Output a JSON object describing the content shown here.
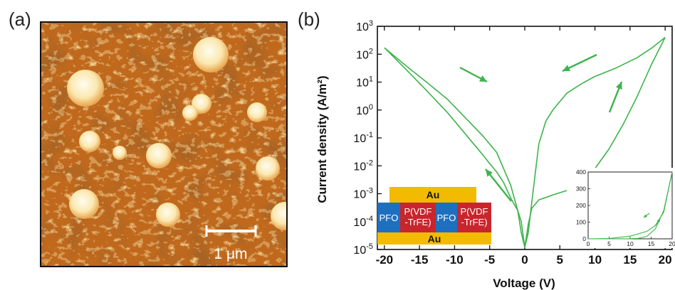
{
  "panel_a": {
    "label": "(a)",
    "scale_bar_text": "1 μm"
  },
  "panel_b": {
    "label": "(b)"
  },
  "device_schematic": {
    "top_electrode": "Au",
    "bottom_electrode": "Au",
    "segments": [
      "PFO",
      "P(VDF\n-TrFE)",
      "PFO",
      "P(VDF\n-TrFE)"
    ],
    "colors": {
      "gold": "#f2bb00",
      "pfo": "#1f6fc0",
      "pvdf": "#c8262c"
    }
  },
  "chart_data": [
    {
      "type": "line",
      "xlabel": "Voltage (V)",
      "ylabel": "Current density (A/m²)",
      "xlim": [
        -21,
        21
      ],
      "ylim": [
        1e-05,
        1000
      ],
      "yscale": "log",
      "xticks": [
        "-20",
        "-15",
        "-10",
        "-5",
        "0",
        "5",
        "10",
        "15",
        "20"
      ],
      "yticks": [
        "10-5",
        "10-4",
        "10-3",
        "10-2",
        "10-1",
        "100",
        "101",
        "102",
        "103"
      ],
      "color": "#3cb44b",
      "series": [
        {
          "x": [
            -20,
            -17,
            -14,
            -11,
            -8,
            -6,
            -4,
            -2,
            -1,
            -0.5,
            0,
            0.5,
            1,
            2,
            3,
            4,
            6,
            8,
            10,
            13,
            16,
            18,
            20
          ],
          "y": [
            170,
            40,
            10,
            2.4,
            0.4,
            0.12,
            0.03,
            0.002,
            0.00025,
            4e-05,
            1.2e-05,
            4e-05,
            0.0005,
            0.06,
            0.4,
            1.0,
            4,
            8.5,
            16,
            32,
            75,
            160,
            400
          ]
        },
        {
          "x": [
            -20,
            -17,
            -14,
            -11,
            -9,
            -7,
            -6,
            -5,
            -4,
            -3,
            -2,
            -1,
            -0.5,
            0,
            0.5,
            1,
            2,
            4,
            6,
            8,
            10,
            12,
            14,
            16,
            18,
            20
          ],
          "y": [
            170,
            30,
            5,
            0.8,
            0.2,
            0.05,
            0.025,
            0.012,
            0.006,
            0.0025,
            0.0007,
            0.00025,
            0.0001,
            1.2e-05,
            8e-05,
            0.0003,
            0.0006,
            0.0009,
            0.0013,
            0.0025,
            0.008,
            0.04,
            0.3,
            3,
            40,
            400
          ]
        }
      ]
    },
    {
      "type": "line",
      "xlim": [
        0,
        20
      ],
      "ylim": [
        0,
        400
      ],
      "xticks": [
        "0",
        "5",
        "10",
        "15",
        "20"
      ],
      "yticks": [
        "0",
        "100",
        "200",
        "300",
        "400"
      ],
      "color": "#3cb44b",
      "series": [
        {
          "x": [
            0,
            5,
            10,
            12,
            14,
            16,
            18,
            20
          ],
          "y": [
            0,
            2,
            16,
            30,
            45,
            80,
            160,
            400
          ]
        },
        {
          "x": [
            0,
            5,
            10,
            12,
            14,
            16,
            18,
            20
          ],
          "y": [
            0,
            0,
            1,
            3,
            15,
            60,
            170,
            400
          ]
        }
      ]
    }
  ]
}
